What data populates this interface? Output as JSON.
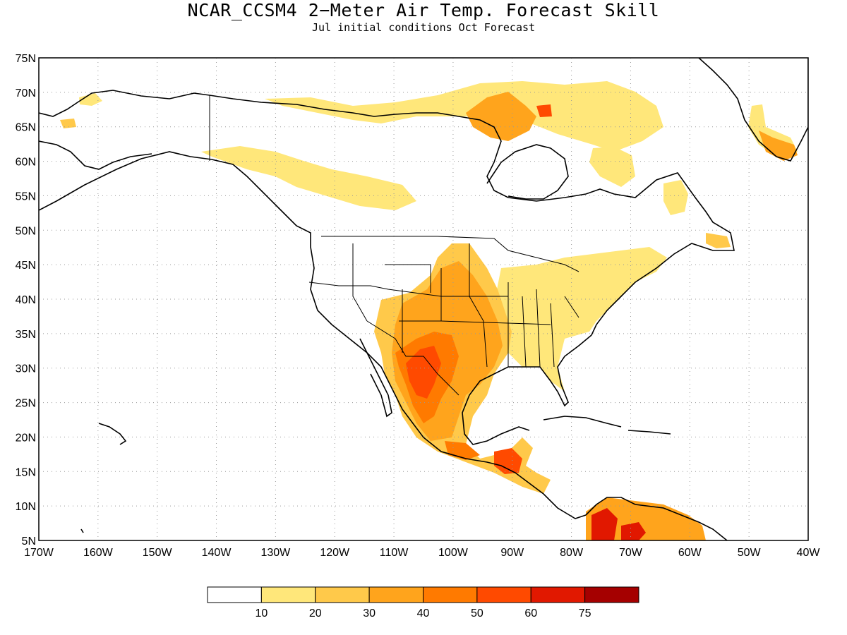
{
  "title": "NCAR_CCSM4 2−Meter Air Temp. Forecast Skill",
  "subtitle": "Jul initial conditions  Oct Forecast",
  "map": {
    "lat_labels": [
      "75N",
      "70N",
      "65N",
      "60N",
      "55N",
      "50N",
      "45N",
      "40N",
      "35N",
      "30N",
      "25N",
      "20N",
      "15N",
      "10N",
      "5N"
    ],
    "lon_labels": [
      "170W",
      "160W",
      "150W",
      "140W",
      "130W",
      "120W",
      "110W",
      "100W",
      "90W",
      "80W",
      "70W",
      "60W",
      "50W",
      "40W"
    ],
    "lat_range": [
      5,
      75
    ],
    "lon_range": [
      -170,
      -40
    ],
    "grid": "dotted",
    "coastline_color": "#000000",
    "shading_regions": [
      {
        "name": "us-southwest-plains",
        "category": "30-40"
      },
      {
        "name": "mexico-plateau",
        "category": "50-60"
      },
      {
        "name": "central-america",
        "category": "50-60"
      },
      {
        "name": "northern-south-america",
        "category": "60-75"
      },
      {
        "name": "canadian-arctic",
        "category": "30-40"
      },
      {
        "name": "greenland-south",
        "category": "30-40"
      },
      {
        "name": "alaska-canada-band",
        "category": "10-20"
      },
      {
        "name": "eastern-us",
        "category": "10-20"
      }
    ]
  },
  "colorbar": {
    "labels": [
      "10",
      "20",
      "30",
      "40",
      "50",
      "60",
      "75"
    ],
    "colors": [
      "#ffffff",
      "#ffe77a",
      "#ffc94a",
      "#ffa41c",
      "#ff7a00",
      "#ff4a00",
      "#e11800",
      "#a50000"
    ]
  }
}
